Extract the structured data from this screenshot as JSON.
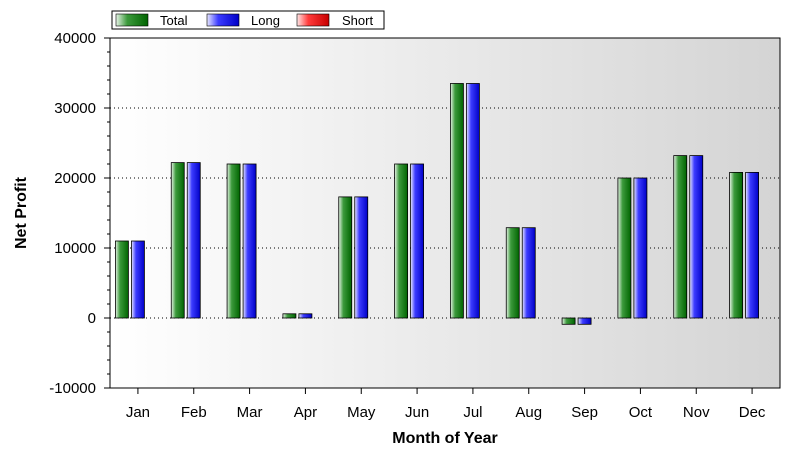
{
  "chart_data": {
    "type": "bar",
    "title": "",
    "xlabel": "Month of Year",
    "ylabel": "Net Profit",
    "ylim": [
      -10000,
      40000
    ],
    "yticks": [
      -10000,
      0,
      10000,
      20000,
      30000,
      40000
    ],
    "grid": "horizontal-dotted",
    "legend_position": "top-left",
    "categories": [
      "Jan",
      "Feb",
      "Mar",
      "Apr",
      "May",
      "Jun",
      "Jul",
      "Aug",
      "Sep",
      "Oct",
      "Nov",
      "Dec"
    ],
    "series": [
      {
        "name": "Total",
        "color": "#008000",
        "values": [
          11000,
          22200,
          22000,
          600,
          17300,
          22000,
          33500,
          12900,
          -900,
          20000,
          23200,
          20800
        ]
      },
      {
        "name": "Long",
        "color": "#0000ff",
        "values": [
          11000,
          22200,
          22000,
          600,
          17300,
          22000,
          33500,
          12900,
          -900,
          20000,
          23200,
          20800
        ]
      },
      {
        "name": "Short",
        "color": "#ff0000",
        "values": [
          0,
          0,
          0,
          0,
          0,
          0,
          0,
          0,
          0,
          0,
          0,
          0
        ]
      }
    ]
  }
}
